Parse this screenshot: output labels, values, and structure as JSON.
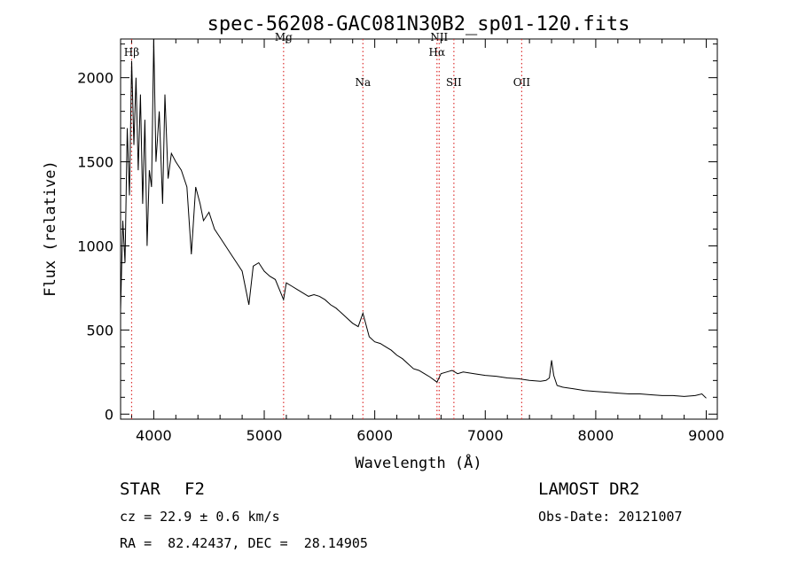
{
  "chart_data": {
    "type": "line",
    "title": "spec-56208-GAC081N30B2_sp01-120.fits",
    "xlabel": "Wavelength (Å)",
    "ylabel": "Flux (relative)",
    "xlim": [
      3700,
      9100
    ],
    "ylim": [
      -30,
      2230
    ],
    "x_ticks": [
      4000,
      5000,
      6000,
      7000,
      8000,
      9000
    ],
    "y_ticks": [
      0,
      500,
      1000,
      1500,
      2000
    ],
    "grid": false,
    "line_color": "#000000",
    "marker_color": "#dd3333",
    "spectrum": {
      "x": [
        3700,
        3720,
        3740,
        3760,
        3780,
        3800,
        3820,
        3840,
        3860,
        3880,
        3900,
        3920,
        3940,
        3960,
        3980,
        4000,
        4020,
        4050,
        4080,
        4101,
        4130,
        4160,
        4200,
        4250,
        4300,
        4340,
        4380,
        4420,
        4450,
        4500,
        4550,
        4600,
        4650,
        4700,
        4750,
        4800,
        4861,
        4900,
        4950,
        5000,
        5050,
        5100,
        5150,
        5175,
        5200,
        5250,
        5300,
        5350,
        5400,
        5450,
        5500,
        5550,
        5600,
        5650,
        5700,
        5750,
        5800,
        5850,
        5893,
        5950,
        6000,
        6050,
        6100,
        6150,
        6200,
        6250,
        6300,
        6350,
        6400,
        6450,
        6500,
        6563,
        6600,
        6650,
        6700,
        6750,
        6800,
        6900,
        7000,
        7100,
        7200,
        7300,
        7400,
        7500,
        7550,
        7580,
        7600,
        7620,
        7650,
        7700,
        7800,
        7900,
        8000,
        8100,
        8200,
        8300,
        8400,
        8500,
        8600,
        8700,
        8800,
        8900,
        8960,
        9000
      ],
      "y": [
        620,
        1150,
        900,
        1700,
        1300,
        2100,
        1600,
        2000,
        1450,
        1900,
        1250,
        1750,
        1000,
        1450,
        1350,
        2250,
        1500,
        1800,
        1250,
        1900,
        1400,
        1550,
        1500,
        1450,
        1350,
        950,
        1350,
        1250,
        1150,
        1200,
        1100,
        1050,
        1000,
        950,
        900,
        850,
        650,
        880,
        900,
        850,
        820,
        800,
        720,
        680,
        780,
        760,
        740,
        720,
        700,
        710,
        700,
        680,
        650,
        630,
        600,
        570,
        540,
        520,
        600,
        460,
        430,
        420,
        400,
        380,
        350,
        330,
        300,
        270,
        260,
        240,
        220,
        190,
        240,
        250,
        260,
        240,
        250,
        240,
        230,
        225,
        215,
        210,
        200,
        195,
        200,
        215,
        320,
        230,
        170,
        160,
        150,
        140,
        135,
        130,
        125,
        120,
        120,
        115,
        110,
        110,
        105,
        110,
        120,
        95
      ]
    },
    "line_markers": [
      {
        "label": "Hβ",
        "x": 3800,
        "label_row": 0
      },
      {
        "label": "Mg",
        "x": 5175,
        "label_row": -1
      },
      {
        "label": "Na",
        "x": 5893,
        "label_row": 1
      },
      {
        "label": "NII",
        "x": 6583,
        "label_row": -1
      },
      {
        "label": "Hα",
        "x": 6563,
        "label_row": 0
      },
      {
        "label": "SII",
        "x": 6716,
        "label_row": 1
      },
      {
        "label": "OII",
        "x": 7330,
        "label_row": 1
      }
    ]
  },
  "info": {
    "object_class": "STAR",
    "subclass": "F2",
    "release": "LAMOST DR2",
    "redshift_line": "cz = 22.9 ± 0.6 km/s",
    "obs_date_line": "Obs-Date: 20121007",
    "coords_line": "RA =  82.42437, DEC =  28.14905"
  }
}
